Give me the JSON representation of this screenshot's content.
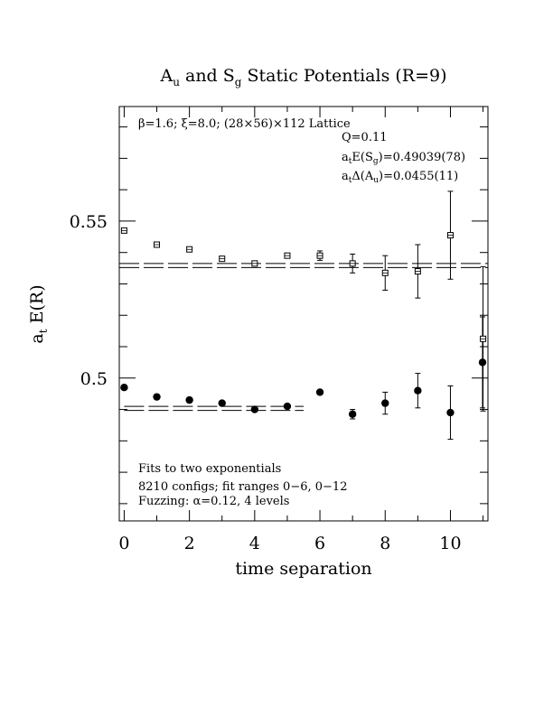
{
  "chart_data": {
    "type": "scatter",
    "title": {
      "a_main": "A",
      "a_sub": "u",
      "mid": " and S",
      "s_sub": "g",
      "rest": " Static Potentials (R=9)"
    },
    "xlabel": "time separation",
    "ylabel": {
      "main": "a",
      "sub": "t",
      "rest": " E(R)"
    },
    "xlim": [
      -0.15,
      11.15
    ],
    "ylim": [
      0.4545,
      0.5865
    ],
    "x_ticks": [
      {
        "value": 0,
        "label": "0"
      },
      {
        "value": 2,
        "label": "2"
      },
      {
        "value": 4,
        "label": "4"
      },
      {
        "value": 6,
        "label": "6"
      },
      {
        "value": 8,
        "label": "8"
      },
      {
        "value": 10,
        "label": "10"
      }
    ],
    "y_ticks": [
      {
        "value": 0.5,
        "label": "0.5"
      },
      {
        "value": 0.55,
        "label": "0.55"
      }
    ],
    "y_minor_ticks": [
      0.46,
      0.47,
      0.48,
      0.49,
      0.51,
      0.52,
      0.53,
      0.54,
      0.56,
      0.57,
      0.58
    ],
    "x_minor_ticks": [
      1,
      3,
      5,
      7,
      9,
      11
    ],
    "series": [
      {
        "name": "S_g",
        "marker": "filled-circle",
        "points": [
          {
            "x": 0,
            "y": 0.497,
            "err": 0.0
          },
          {
            "x": 1,
            "y": 0.494,
            "err": 0.0
          },
          {
            "x": 2,
            "y": 0.493,
            "err": 0.0
          },
          {
            "x": 3,
            "y": 0.492,
            "err": 0.0
          },
          {
            "x": 4,
            "y": 0.49,
            "err": 0.0
          },
          {
            "x": 5,
            "y": 0.491,
            "err": 0.0
          },
          {
            "x": 6,
            "y": 0.4955,
            "err": 0.0
          },
          {
            "x": 7,
            "y": 0.4885,
            "err": 0.0015
          },
          {
            "x": 8,
            "y": 0.492,
            "err": 0.0035
          },
          {
            "x": 9,
            "y": 0.496,
            "err": 0.0055
          },
          {
            "x": 10,
            "y": 0.489,
            "err": 0.0085
          },
          {
            "x": 11,
            "y": 0.505,
            "err": 0.0145
          }
        ]
      },
      {
        "name": "A_u",
        "marker": "open-square",
        "points": [
          {
            "x": 0,
            "y": 0.547,
            "err": 0.0
          },
          {
            "x": 1,
            "y": 0.5425,
            "err": 0.0
          },
          {
            "x": 2,
            "y": 0.541,
            "err": 0.0
          },
          {
            "x": 3,
            "y": 0.538,
            "err": 0.0
          },
          {
            "x": 4,
            "y": 0.5365,
            "err": 0.0
          },
          {
            "x": 5,
            "y": 0.539,
            "err": 0.0
          },
          {
            "x": 6,
            "y": 0.539,
            "err": 0.0015
          },
          {
            "x": 7,
            "y": 0.5365,
            "err": 0.003
          },
          {
            "x": 8,
            "y": 0.5335,
            "err": 0.0055
          },
          {
            "x": 9,
            "y": 0.534,
            "err": 0.0085
          },
          {
            "x": 10,
            "y": 0.5455,
            "err": 0.014
          },
          {
            "x": 11,
            "y": 0.5125,
            "err": 0.023
          }
        ]
      }
    ],
    "fit_bands": [
      {
        "name": "S_g fit",
        "x": [
          0,
          5.5
        ],
        "lower": 0.4897,
        "upper": 0.491
      },
      {
        "name": "A_u fit",
        "x": [
          -0.15,
          11.15
        ],
        "lower": 0.5352,
        "upper": 0.5365
      }
    ],
    "annotations": {
      "lattice_line": "β=1.6; ξ=8.0; (28×56)×112 Lattice",
      "q_line": "Q=0.11",
      "energy_line": {
        "main": "a",
        "sub1": "t",
        "mid": "E(S",
        "sub2": "g",
        "rest": ")=0.49039(78)"
      },
      "delta_line": {
        "main": "a",
        "sub1": "t",
        "mid": "Δ(A",
        "sub2": "u",
        "rest": ")=0.0455(11)"
      },
      "fit_line1": "Fits to two exponentials",
      "fit_line2": "8210 configs; fit ranges 0−6, 0−12",
      "fit_line3": "Fuzzing: α=0.12, 4 levels"
    },
    "grid": false,
    "legend": "none"
  }
}
